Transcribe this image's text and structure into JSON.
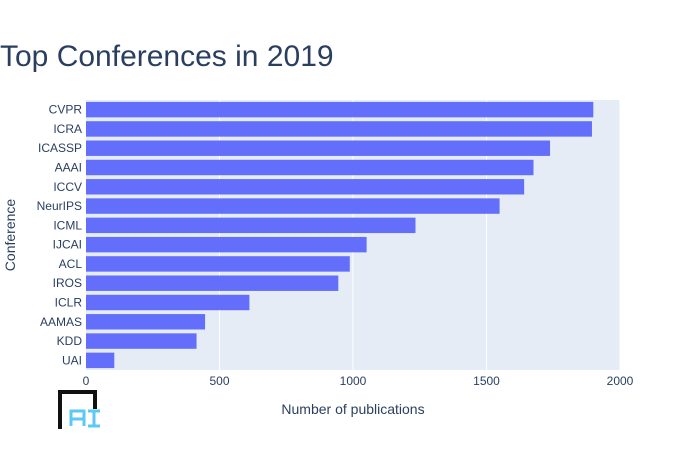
{
  "chart_data": {
    "type": "bar",
    "orientation": "horizontal",
    "title": "Top Conferences in 2019",
    "xlabel": "Number of publications",
    "ylabel": "Conference",
    "xlim": [
      0,
      2000
    ],
    "x_ticks": [
      "0",
      "500",
      "1000",
      "1500",
      "2000"
    ],
    "x_tick_values": [
      0,
      500,
      1000,
      1500,
      2000
    ],
    "categories": [
      "CVPR",
      "ICRA",
      "ICASSP",
      "AAAI",
      "ICCV",
      "NeurIPS",
      "ICML",
      "IJCAI",
      "ACL",
      "IROS",
      "ICLR",
      "AAMAS",
      "KDD",
      "UAI"
    ],
    "values": [
      1900,
      1895,
      1738,
      1676,
      1641,
      1549,
      1234,
      1051,
      988,
      945,
      612,
      446,
      414,
      106
    ],
    "grid": true,
    "legend": false,
    "colors": {
      "bar": "#636efa",
      "plot_background": "#e5ecf6",
      "grid": "#ffffff",
      "text": "#2a3f5f",
      "logo_frame": "#111111",
      "logo_letters": "#5bc8f5"
    }
  },
  "logo": {
    "text": "AI",
    "icon": "ai-logo-icon"
  }
}
